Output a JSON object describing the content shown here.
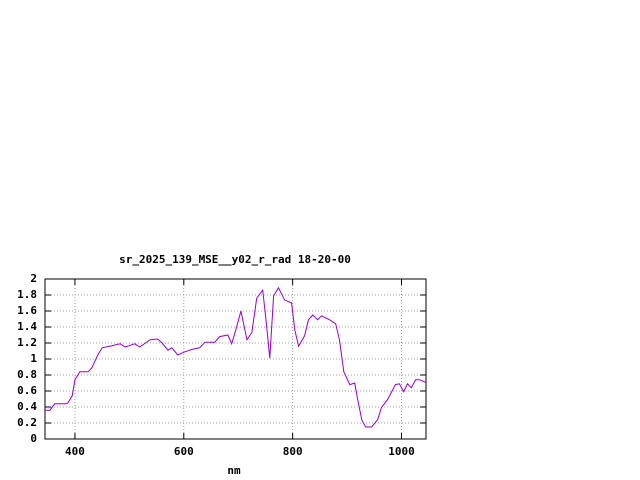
{
  "chart_data": {
    "type": "line",
    "title": "sr_2025_139_MSE__y02_r_rad 18-20-00",
    "x_label": "nm",
    "xlim": [
      345,
      1045
    ],
    "xticks": [
      400,
      600,
      800,
      1000
    ],
    "ylim": [
      0,
      2
    ],
    "yticks": [
      0,
      0.2,
      0.4,
      0.6,
      0.8,
      1,
      1.2,
      1.4,
      1.6,
      1.8,
      2
    ],
    "grid": true,
    "series": [
      {
        "color": "#9400d3",
        "x": [
          345,
          354,
          363,
          382,
          387,
          395,
          400,
          409,
          424,
          431,
          442,
          450,
          464,
          483,
          492,
          510,
          519,
          538,
          552,
          560,
          571,
          578,
          589,
          602,
          615,
          629,
          639,
          657,
          666,
          681,
          688,
          695,
          705,
          716,
          725,
          734,
          745,
          751,
          758,
          765,
          774,
          785,
          798,
          804,
          811,
          822,
          829,
          837,
          846,
          853,
          868,
          879,
          886,
          894,
          905,
          914,
          919,
          927,
          934,
          945,
          956,
          963,
          974,
          989,
          996,
          1004,
          1011,
          1018,
          1026,
          1033,
          1044
        ],
        "values": [
          0.36,
          0.36,
          0.44,
          0.44,
          0.45,
          0.54,
          0.74,
          0.84,
          0.84,
          0.89,
          1.05,
          1.14,
          1.16,
          1.19,
          1.15,
          1.19,
          1.15,
          1.24,
          1.25,
          1.2,
          1.11,
          1.14,
          1.05,
          1.09,
          1.12,
          1.14,
          1.21,
          1.21,
          1.28,
          1.3,
          1.19,
          1.35,
          1.6,
          1.24,
          1.33,
          1.76,
          1.86,
          1.49,
          1.01,
          1.79,
          1.89,
          1.74,
          1.7,
          1.36,
          1.16,
          1.29,
          1.49,
          1.55,
          1.49,
          1.54,
          1.49,
          1.44,
          1.24,
          0.84,
          0.68,
          0.7,
          0.51,
          0.24,
          0.15,
          0.15,
          0.24,
          0.39,
          0.49,
          0.68,
          0.69,
          0.59,
          0.69,
          0.64,
          0.74,
          0.74,
          0.71
        ]
      }
    ]
  }
}
